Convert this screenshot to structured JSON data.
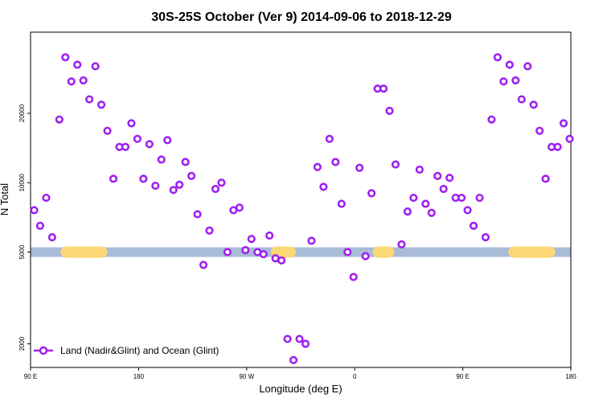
{
  "chart_data": {
    "type": "scatter",
    "title": "30S-25S October (Ver 9)   2014-09-06 to 2018-12-29",
    "xlabel": "Longitude (deg E)",
    "ylabel": "N Total",
    "x_axis": {
      "range_deg_east_unwrapped": [
        90,
        450
      ],
      "ticks": [
        {
          "value": 90,
          "label": "90 E"
        },
        {
          "value": 180,
          "label": "180"
        },
        {
          "value": 270,
          "label": "90 W"
        },
        {
          "value": 360,
          "label": "0"
        },
        {
          "value": 450,
          "label": "90 E"
        },
        {
          "value": 540,
          "label": "180"
        }
      ],
      "note": "longitude axis wraps from 90 E eastward through 180, 90 W, 0, 90 E to 180"
    },
    "y_axis": {
      "scale": "log",
      "range": [
        1580,
        45000
      ],
      "ticks": [
        {
          "value": 2000,
          "label": "2000"
        },
        {
          "value": 5000,
          "label": "5000"
        },
        {
          "value": 10000,
          "label": "10000"
        },
        {
          "value": 20000,
          "label": "20000"
        }
      ]
    },
    "x_range": [
      90,
      540
    ],
    "grid": false,
    "legend_position": "bottom-left",
    "land_mask_band": {
      "y_value": 5000,
      "ocean_color": "#a8bcd8",
      "land_color": "#fcd874",
      "land_segments": [
        [
          115,
          154
        ],
        [
          290,
          311
        ],
        [
          375,
          393
        ],
        [
          488,
          527
        ]
      ]
    },
    "series": [
      {
        "name": "Land (Nadir&Glint) and Ocean (Glint)",
        "color": "#a020f0",
        "marker": "open-circle",
        "points": [
          [
            93,
            7600
          ],
          [
            98,
            6500
          ],
          [
            103,
            8600
          ],
          [
            108,
            5800
          ],
          [
            114,
            18800
          ],
          [
            119,
            35000
          ],
          [
            124,
            27500
          ],
          [
            129,
            32500
          ],
          [
            134,
            27800
          ],
          [
            139,
            23000
          ],
          [
            144,
            32000
          ],
          [
            149,
            21800
          ],
          [
            154,
            16800
          ],
          [
            159,
            10400
          ],
          [
            164,
            14300
          ],
          [
            169,
            14300
          ],
          [
            174,
            18100
          ],
          [
            179,
            15500
          ],
          [
            184,
            10400
          ],
          [
            189,
            14700
          ],
          [
            194,
            9700
          ],
          [
            199,
            12600
          ],
          [
            204,
            15300
          ],
          [
            209,
            9300
          ],
          [
            214,
            9800
          ],
          [
            219,
            12300
          ],
          [
            224,
            10700
          ],
          [
            229,
            7300
          ],
          [
            234,
            4400
          ],
          [
            239,
            6200
          ],
          [
            244,
            9400
          ],
          [
            249,
            10000
          ],
          [
            254,
            5000
          ],
          [
            259,
            7600
          ],
          [
            264,
            7800
          ],
          [
            269,
            5100
          ],
          [
            274,
            5700
          ],
          [
            279,
            5000
          ],
          [
            284,
            4900
          ],
          [
            289,
            5900
          ],
          [
            294,
            4700
          ],
          [
            299,
            4600
          ],
          [
            304,
            2100
          ],
          [
            309,
            1700
          ],
          [
            314,
            2100
          ],
          [
            319,
            2000
          ],
          [
            324,
            5600
          ],
          [
            329,
            11700
          ],
          [
            334,
            9600
          ],
          [
            339,
            15500
          ],
          [
            344,
            12300
          ],
          [
            349,
            8100
          ],
          [
            354,
            5000
          ],
          [
            359,
            3900
          ],
          [
            364,
            11600
          ],
          [
            369,
            4800
          ],
          [
            374,
            9000
          ],
          [
            379,
            25600
          ],
          [
            384,
            25600
          ],
          [
            389,
            20500
          ],
          [
            394,
            12000
          ],
          [
            399,
            5400
          ],
          [
            404,
            7500
          ],
          [
            409,
            8600
          ],
          [
            414,
            11400
          ],
          [
            419,
            8100
          ],
          [
            424,
            7400
          ],
          [
            429,
            10700
          ],
          [
            434,
            9400
          ],
          [
            439,
            10500
          ],
          [
            444,
            8600
          ],
          [
            449,
            8600
          ],
          [
            454,
            7600
          ],
          [
            459,
            6500
          ],
          [
            464,
            8600
          ],
          [
            469,
            5800
          ],
          [
            474,
            18800
          ],
          [
            479,
            35000
          ],
          [
            484,
            27500
          ],
          [
            489,
            32500
          ],
          [
            494,
            27800
          ],
          [
            499,
            23000
          ],
          [
            504,
            32000
          ],
          [
            509,
            21800
          ],
          [
            514,
            16800
          ],
          [
            519,
            10400
          ],
          [
            524,
            14300
          ],
          [
            529,
            14300
          ],
          [
            534,
            18100
          ],
          [
            539,
            15500
          ]
        ]
      }
    ]
  }
}
